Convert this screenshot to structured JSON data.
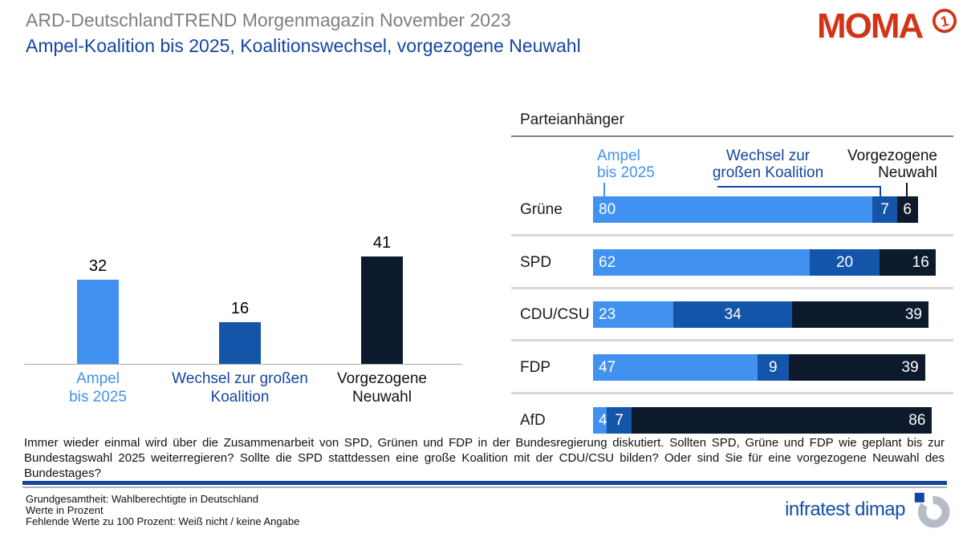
{
  "header": {
    "suptitle": "ARD-DeutschlandTREND Morgenmagazin November 2023",
    "title": "Ampel-Koalition bis 2025, Koalitionswechsel, vorgezogene Neuwahl",
    "moma_logo_text": "MOMA",
    "ard_one": "1"
  },
  "colors": {
    "ampel_blue": "#4191f0",
    "coalition_blue": "#1355a9",
    "neuwahl_navy": "#0c1a2b",
    "title_blue": "#1446a0",
    "suptitle_gray": "#7f7f7f",
    "moma_red": "#d23418",
    "brand_blue": "#1450a8",
    "separator_gray": "#d9d9d9"
  },
  "chart_data": [
    {
      "type": "bar",
      "title": "",
      "categories": [
        "Ampel\nbis 2025",
        "Wechsel zur großen\nKoalition",
        "Vorgezogene\nNeuwahl"
      ],
      "values": [
        32,
        16,
        41
      ],
      "colors": [
        "#4191f0",
        "#1355a9",
        "#0c1a2b"
      ],
      "label_colors": [
        "#4191f0",
        "#1446a0",
        "#111111"
      ],
      "ylim": [
        0,
        50
      ],
      "grid": false,
      "value_labels": "above bars"
    },
    {
      "type": "stacked-bar-horizontal",
      "title": "Parteianhänger",
      "categories": [
        "Grüne",
        "SPD",
        "CDU/CSU",
        "FDP",
        "AfD"
      ],
      "series": [
        {
          "id": "ampel",
          "name": "Ampel bis 2025",
          "color": "#4191f0",
          "values": [
            80,
            62,
            23,
            47,
            4
          ]
        },
        {
          "id": "wechsel",
          "name": "Wechsel zur großen Koalition",
          "color": "#1355a9",
          "values": [
            7,
            20,
            34,
            9,
            7
          ]
        },
        {
          "id": "neuwahl",
          "name": "Vorgezogene Neuwahl",
          "color": "#0c1a2b",
          "values": [
            6,
            16,
            39,
            39,
            86
          ]
        }
      ],
      "xlim": [
        0,
        100
      ],
      "legend_position": "top",
      "value_labels": "inside segments"
    }
  ],
  "legend": {
    "ampel": [
      "Ampel",
      "bis 2025"
    ],
    "wechsel": [
      "Wechsel zur",
      "großen Koalition"
    ],
    "neuwahl": [
      "Vorgezogene",
      "Neuwahl"
    ]
  },
  "question": "Immer wieder einmal wird über die Zusammenarbeit von SPD, Grünen und FDP in der Bundesregierung diskutiert. Sollten SPD, Grüne und FDP wie geplant bis zur Bundestagswahl 2025 weiterregieren? Sollte die SPD stattdessen eine große Koalition mit der CDU/CSU bilden? Oder sind Sie für eine vorgezogene Neuwahl des Bundestages?",
  "footer": {
    "lines": [
      "Grundgesamtheit: Wahlberechtigte in Deutschland",
      "Werte in Prozent",
      "Fehlende Werte zu 100 Prozent: Weiß nicht / keine Angabe"
    ],
    "brand": "infratest dimap"
  }
}
